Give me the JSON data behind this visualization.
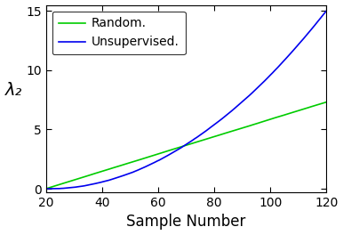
{
  "title": "",
  "xlabel": "Sample Number",
  "ylabel": "λ₂",
  "xlim": [
    20,
    120
  ],
  "ylim": [
    -0.3,
    15.5
  ],
  "xticks": [
    20,
    40,
    60,
    80,
    100,
    120
  ],
  "yticks": [
    0,
    5,
    10,
    15
  ],
  "legend_labels": [
    "Random.",
    "Unsupervised."
  ],
  "background_color": "#ffffff",
  "tick_label_fontsize": 10,
  "axis_label_fontsize": 12,
  "legend_fontsize": 10,
  "green_color": "#00cc00",
  "blue_color": "#0000ee",
  "random_coeff": 0.073,
  "random_power": 1.0,
  "unsup_coeff": 0.0014,
  "unsup_power": 2.0,
  "noise_seed": 10,
  "noise_scale_random": 0.04,
  "noise_scale_unsup": 0.08,
  "n_points": 800
}
